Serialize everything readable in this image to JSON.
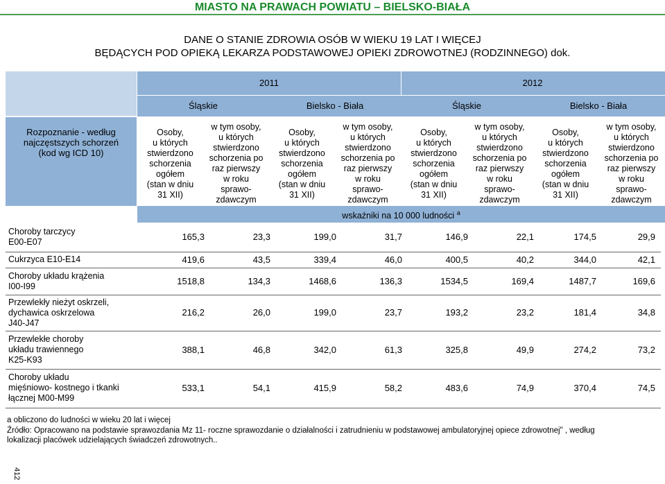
{
  "header": {
    "banner": "MIASTO NA PRAWACH POWIATU – BIELSKO-BIAŁA",
    "title_line1": "DANE O STANIE ZDROWIA OSÓB W WIEKU 19 LAT I WIĘCEJ",
    "title_line2": "BĘDĄCYCH POD OPIEKĄ LEKARZA PODSTAWOWEJ OPIEKI ZDROWOTNEJ (RODZINNEGO) dok."
  },
  "table": {
    "years": [
      "2011",
      "2012"
    ],
    "regions": [
      "Śląskie",
      "Bielsko - Biała",
      "Śląskie",
      "Bielsko - Biała"
    ],
    "diagnosis_header": "Rozpoznanie - według naj częstszych schorzeń (kod wg ICD 10)",
    "diagnosis_header_lines": [
      "Rozpoznanie - według",
      "najczęstszych schorzeń",
      "(kod wg ICD 10)"
    ],
    "col_a_lines": [
      "Osoby,",
      "u których",
      "stwierdzono",
      "schorzenia",
      "ogółem",
      "(stan w dniu",
      "31 XII)"
    ],
    "col_b_lines": [
      "w tym osoby,",
      "u których",
      "stwierdzono",
      "schorzenia po",
      "raz pierwszy",
      "w roku",
      "sprawo-",
      "zdawczym"
    ],
    "units_note": "wskaźniki na 10 000 ludności",
    "units_sup": "a",
    "rows": [
      {
        "label_lines": [
          "Choroby tarczycy",
          "E00-E07"
        ],
        "values": [
          "165,3",
          "23,3",
          "199,0",
          "31,7",
          "146,9",
          "22,1",
          "174,5",
          "29,9"
        ]
      },
      {
        "label_lines": [
          "Cukrzyca E10-E14"
        ],
        "values": [
          "419,6",
          "43,5",
          "339,4",
          "46,0",
          "400,5",
          "40,2",
          "344,0",
          "42,1"
        ]
      },
      {
        "label_lines": [
          "Choroby układu krążenia",
          "I00-I99"
        ],
        "values": [
          "1518,8",
          "134,3",
          "1468,6",
          "136,3",
          "1534,5",
          "169,4",
          "1487,7",
          "169,6"
        ]
      },
      {
        "label_lines": [
          "Przewlekły nieżyt oskrzeli,",
          "dychawica oskrzelowa",
          "J40-J47"
        ],
        "values": [
          "216,2",
          "26,0",
          "199,0",
          "23,7",
          "193,2",
          "23,2",
          "181,4",
          "34,8"
        ]
      },
      {
        "label_lines": [
          "Przewlekłe choroby",
          "układu trawiennego",
          "K25-K93"
        ],
        "values": [
          "388,1",
          "46,8",
          "342,0",
          "61,3",
          "325,8",
          "49,9",
          "274,2",
          "73,2"
        ]
      },
      {
        "label_lines": [
          "Choroby układu",
          "mięśniowo- kostnego i tkanki",
          "łącznej M00-M99"
        ],
        "values": [
          "533,1",
          "54,1",
          "415,9",
          "58,2",
          "483,6",
          "74,9",
          "370,4",
          "74,5"
        ]
      }
    ]
  },
  "footer": {
    "note_a": "a  obliczono do ludności w wieku 20 lat i więcej",
    "source_line1": "Źródło: Opracowano na podstawie sprawozdania Mz 11- roczne sprawozdanie o działalności i zatrudnieniu w podstawowej ambulatoryjnej opiece zdrowotnej\" , według",
    "source_line2": "lokalizacji placówek udzielających świadczeń zdrowotnych..",
    "page_number": "412"
  },
  "colors": {
    "banner_text": "#1a8a2c",
    "header_blue": "#8fb1d6"
  }
}
